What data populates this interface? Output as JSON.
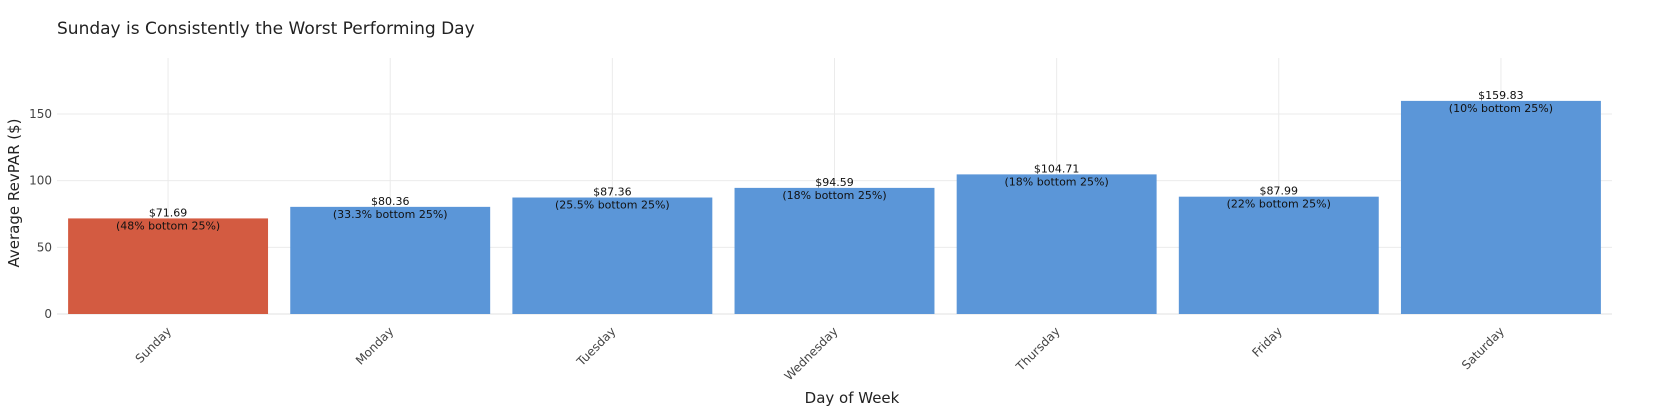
{
  "chart_data": {
    "type": "bar",
    "title": "Sunday is Consistently the Worst Performing Day",
    "xlabel": "Day of Week",
    "ylabel": "Average RevPAR ($)",
    "categories": [
      "Sunday",
      "Monday",
      "Tuesday",
      "Wednesday",
      "Thursday",
      "Friday",
      "Saturday"
    ],
    "values": [
      71.69,
      80.36,
      87.36,
      94.59,
      104.71,
      87.99,
      159.83
    ],
    "value_labels": [
      "$71.69",
      "$80.36",
      "$87.36",
      "$94.59",
      "$104.71",
      "$87.99",
      "$159.83"
    ],
    "sub_labels": [
      "(48% bottom 25%)",
      "(33.3% bottom 25%)",
      "(25.5% bottom 25%)",
      "(18% bottom 25%)",
      "(18% bottom 25%)",
      "(22% bottom 25%)",
      "(10% bottom 25%)"
    ],
    "bar_colors": [
      "#d35b41",
      "#5b96d8",
      "#5b96d8",
      "#5b96d8",
      "#5b96d8",
      "#5b96d8",
      "#5b96d8"
    ],
    "yticks": [
      0,
      50,
      100,
      150
    ],
    "ylim": [
      0,
      192
    ],
    "grid": true,
    "legend": "none"
  }
}
